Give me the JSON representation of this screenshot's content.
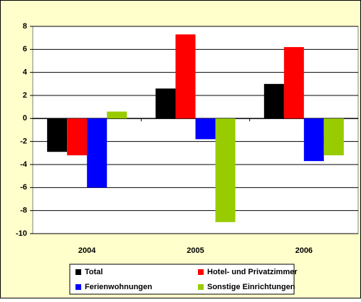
{
  "chart_data": {
    "type": "bar",
    "categories": [
      "2004",
      "2005",
      "2006"
    ],
    "series": [
      {
        "name": "Total",
        "color": "#000000",
        "values": [
          -2.9,
          2.6,
          3.0
        ]
      },
      {
        "name": "Hotel- und Privatzimmer",
        "color": "#ff0000",
        "values": [
          -3.2,
          7.3,
          6.2
        ]
      },
      {
        "name": "Ferienwohnungen",
        "color": "#0000ff",
        "values": [
          -6.0,
          -1.8,
          -3.7
        ]
      },
      {
        "name": "Sonstige Einrichtungen",
        "color": "#99cc00",
        "values": [
          0.6,
          -9.0,
          -3.2
        ]
      }
    ],
    "ylim": [
      -10,
      8
    ],
    "yticks": [
      -10,
      -8,
      -6,
      -4,
      -2,
      0,
      2,
      4,
      6,
      8
    ],
    "grid": true,
    "legend": "bottom"
  }
}
